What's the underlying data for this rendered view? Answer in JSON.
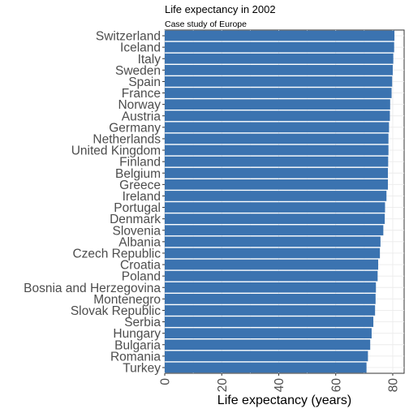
{
  "chart_data": {
    "type": "bar",
    "orientation": "horizontal",
    "title": "Life expectancy in 2002",
    "subtitle": "Case study of Europe",
    "xlabel": "Life expectancy (years)",
    "ylabel": "",
    "xlim": [
      0,
      84
    ],
    "xticks": [
      0,
      20,
      40,
      60,
      80
    ],
    "xtick_labels": [
      "0",
      "20",
      "40",
      "60",
      "80"
    ],
    "grid": true,
    "bar_color": "#3b73b0",
    "categories": [
      "Switzerland",
      "Iceland",
      "Italy",
      "Sweden",
      "Spain",
      "France",
      "Norway",
      "Austria",
      "Germany",
      "Netherlands",
      "United Kingdom",
      "Finland",
      "Belgium",
      "Greece",
      "Ireland",
      "Portugal",
      "Denmark",
      "Slovenia",
      "Albania",
      "Czech Republic",
      "Croatia",
      "Poland",
      "Bosnia and Herzegovina",
      "Montenegro",
      "Slovak Republic",
      "Serbia",
      "Hungary",
      "Bulgaria",
      "Romania",
      "Turkey"
    ],
    "values": [
      80.6,
      80.5,
      80.2,
      80.0,
      79.8,
      79.6,
      79.1,
      79.0,
      78.7,
      78.5,
      78.5,
      78.4,
      78.3,
      78.3,
      77.8,
      77.3,
      77.2,
      76.7,
      75.7,
      75.5,
      74.9,
      74.7,
      74.1,
      73.98,
      73.8,
      73.2,
      72.6,
      72.1,
      71.3,
      70.8
    ]
  }
}
